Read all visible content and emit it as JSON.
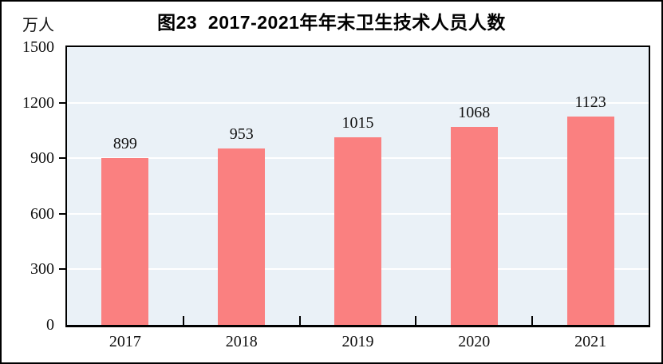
{
  "figure": {
    "title": "图23  2017-2021年年末卫生技术人员人数",
    "unit_label": "万人"
  },
  "colors": {
    "bar": "#FA8080",
    "plot_background": "#EAF1F7",
    "gridline": "#FFFFFF",
    "axis": "#000000",
    "text": "#111111"
  },
  "chart_data": {
    "type": "bar",
    "title": "图23  2017-2021年年末卫生技术人员人数",
    "unit": "万人",
    "categories": [
      "2017",
      "2018",
      "2019",
      "2020",
      "2021"
    ],
    "values": [
      899,
      953,
      1015,
      1068,
      1123
    ],
    "data_labels_shown": true,
    "ylim": [
      0,
      1500
    ],
    "yticks": [
      0,
      300,
      600,
      900,
      1200,
      1500
    ],
    "gridline_values": [
      300,
      600,
      900,
      1200
    ],
    "grid": true,
    "legend": false
  }
}
